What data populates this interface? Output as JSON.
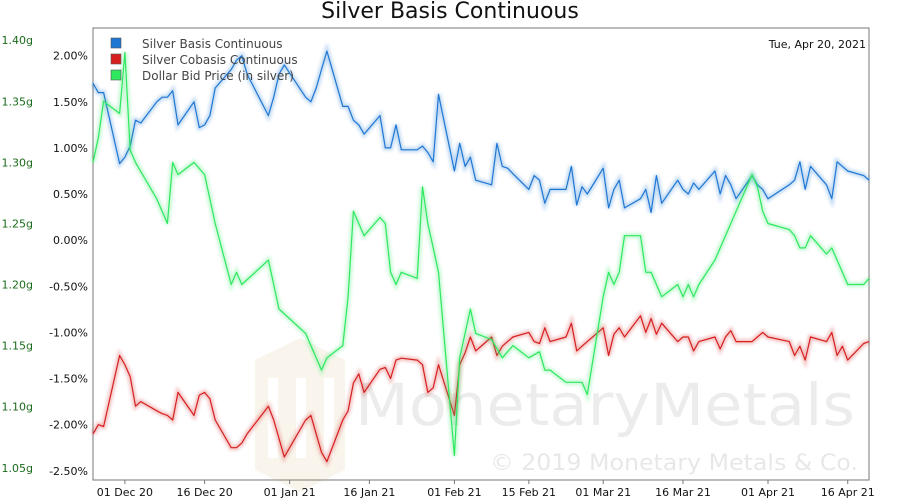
{
  "chart_data": {
    "type": "line",
    "title": "Silver Basis Continuous",
    "date_label": "Tue, Apr 20, 2021",
    "watermark": {
      "brand": "MonetaryMetals",
      "copyright": "© 2019 Monetary Metals & Co."
    },
    "x_ticks": [
      "01 Dec 20",
      "16 Dec 20",
      "01 Jan 21",
      "16 Jan 21",
      "01 Feb 21",
      "15 Feb 21",
      "01 Mar 21",
      "16 Mar 21",
      "01 Apr 21",
      "16 Apr 21"
    ],
    "x_tick_dates": [
      "2020-12-01",
      "2020-12-16",
      "2021-01-01",
      "2021-01-16",
      "2021-02-01",
      "2021-02-15",
      "2021-03-01",
      "2021-03-16",
      "2021-04-01",
      "2021-04-16"
    ],
    "xlim": [
      "2020-11-25",
      "2021-04-20"
    ],
    "y_left": {
      "ylim": [
        1.04,
        1.41
      ],
      "ticks": [
        "1.05g",
        "1.10g",
        "1.15g",
        "1.20g",
        "1.25g",
        "1.30g",
        "1.35g",
        "1.40g"
      ],
      "tick_values": [
        1.05,
        1.1,
        1.15,
        1.2,
        1.25,
        1.3,
        1.35,
        1.4
      ]
    },
    "y_right": {
      "ylim": [
        -2.6,
        2.3
      ],
      "ticks": [
        "-2.50%",
        "-2.00%",
        "-1.50%",
        "-1.00%",
        "-0.50%",
        "0.00%",
        "0.50%",
        "1.00%",
        "1.50%",
        "2.00%"
      ],
      "tick_values": [
        -2.5,
        -2.0,
        -1.5,
        -1.0,
        -0.5,
        0.0,
        0.5,
        1.0,
        1.5,
        2.0
      ]
    },
    "legend_position": "top-left",
    "series": [
      {
        "name": "Silver Basis Continuous",
        "color": "#1f77d4",
        "axis": "right",
        "dates": [
          "2020-11-25",
          "2020-11-26",
          "2020-11-27",
          "2020-11-30",
          "2020-12-01",
          "2020-12-02",
          "2020-12-03",
          "2020-12-04",
          "2020-12-07",
          "2020-12-08",
          "2020-12-09",
          "2020-12-10",
          "2020-12-11",
          "2020-12-14",
          "2020-12-15",
          "2020-12-16",
          "2020-12-17",
          "2020-12-18",
          "2020-12-21",
          "2020-12-22",
          "2020-12-23",
          "2020-12-24",
          "2020-12-28",
          "2020-12-29",
          "2020-12-30",
          "2020-12-31",
          "2021-01-04",
          "2021-01-05",
          "2021-01-06",
          "2021-01-07",
          "2021-01-08",
          "2021-01-11",
          "2021-01-12",
          "2021-01-13",
          "2021-01-14",
          "2021-01-15",
          "2021-01-18",
          "2021-01-19",
          "2021-01-20",
          "2021-01-21",
          "2021-01-22",
          "2021-01-25",
          "2021-01-26",
          "2021-01-27",
          "2021-01-28",
          "2021-01-29",
          "2021-02-01",
          "2021-02-02",
          "2021-02-03",
          "2021-02-04",
          "2021-02-05",
          "2021-02-08",
          "2021-02-09",
          "2021-02-10",
          "2021-02-11",
          "2021-02-12",
          "2021-02-15",
          "2021-02-16",
          "2021-02-17",
          "2021-02-18",
          "2021-02-19",
          "2021-02-22",
          "2021-02-23",
          "2021-02-24",
          "2021-02-25",
          "2021-02-26",
          "2021-03-01",
          "2021-03-02",
          "2021-03-03",
          "2021-03-04",
          "2021-03-05",
          "2021-03-08",
          "2021-03-09",
          "2021-03-10",
          "2021-03-11",
          "2021-03-12",
          "2021-03-15",
          "2021-03-16",
          "2021-03-17",
          "2021-03-18",
          "2021-03-19",
          "2021-03-22",
          "2021-03-23",
          "2021-03-24",
          "2021-03-25",
          "2021-03-26",
          "2021-03-29",
          "2021-03-30",
          "2021-03-31",
          "2021-04-01",
          "2021-04-05",
          "2021-04-06",
          "2021-04-07",
          "2021-04-08",
          "2021-04-09",
          "2021-04-12",
          "2021-04-13",
          "2021-04-14",
          "2021-04-15",
          "2021-04-16",
          "2021-04-19",
          "2021-04-20"
        ],
        "values": [
          1.7,
          1.6,
          1.6,
          0.83,
          0.9,
          1.02,
          1.3,
          1.27,
          1.5,
          1.55,
          1.55,
          1.62,
          1.25,
          1.5,
          1.22,
          1.25,
          1.35,
          1.65,
          1.85,
          1.95,
          2.0,
          1.8,
          1.35,
          1.55,
          1.8,
          1.9,
          1.55,
          1.5,
          1.65,
          1.85,
          2.05,
          1.45,
          1.45,
          1.3,
          1.25,
          1.15,
          1.35,
          1.0,
          1.0,
          1.25,
          0.98,
          0.98,
          1.02,
          0.95,
          0.85,
          1.58,
          0.75,
          1.05,
          0.8,
          0.9,
          0.65,
          0.6,
          1.05,
          0.8,
          0.78,
          0.72,
          0.55,
          0.7,
          0.65,
          0.4,
          0.55,
          0.55,
          0.8,
          0.38,
          0.58,
          0.5,
          0.78,
          0.35,
          0.55,
          0.65,
          0.35,
          0.45,
          0.55,
          0.3,
          0.7,
          0.4,
          0.65,
          0.55,
          0.5,
          0.62,
          0.55,
          0.75,
          0.5,
          0.7,
          0.6,
          0.45,
          0.7,
          0.6,
          0.55,
          0.45,
          0.6,
          0.65,
          0.85,
          0.55,
          0.8,
          0.6,
          0.45,
          0.85,
          0.8,
          0.75,
          0.7,
          0.65
        ]
      },
      {
        "name": "Silver Cobasis Continuous",
        "color": "#d62020",
        "axis": "right",
        "dates": [
          "2020-11-25",
          "2020-11-26",
          "2020-11-27",
          "2020-11-30",
          "2020-12-01",
          "2020-12-02",
          "2020-12-03",
          "2020-12-04",
          "2020-12-07",
          "2020-12-08",
          "2020-12-09",
          "2020-12-10",
          "2020-12-11",
          "2020-12-14",
          "2020-12-15",
          "2020-12-16",
          "2020-12-17",
          "2020-12-18",
          "2020-12-21",
          "2020-12-22",
          "2020-12-23",
          "2020-12-24",
          "2020-12-28",
          "2020-12-29",
          "2020-12-30",
          "2020-12-31",
          "2021-01-04",
          "2021-01-05",
          "2021-01-06",
          "2021-01-07",
          "2021-01-08",
          "2021-01-11",
          "2021-01-12",
          "2021-01-13",
          "2021-01-14",
          "2021-01-15",
          "2021-01-18",
          "2021-01-19",
          "2021-01-20",
          "2021-01-21",
          "2021-01-22",
          "2021-01-25",
          "2021-01-26",
          "2021-01-27",
          "2021-01-28",
          "2021-01-29",
          "2021-02-01",
          "2021-02-02",
          "2021-02-03",
          "2021-02-04",
          "2021-02-05",
          "2021-02-08",
          "2021-02-09",
          "2021-02-10",
          "2021-02-11",
          "2021-02-12",
          "2021-02-15",
          "2021-02-16",
          "2021-02-17",
          "2021-02-18",
          "2021-02-19",
          "2021-02-22",
          "2021-02-23",
          "2021-02-24",
          "2021-02-25",
          "2021-02-26",
          "2021-03-01",
          "2021-03-02",
          "2021-03-03",
          "2021-03-04",
          "2021-03-05",
          "2021-03-08",
          "2021-03-09",
          "2021-03-10",
          "2021-03-11",
          "2021-03-12",
          "2021-03-15",
          "2021-03-16",
          "2021-03-17",
          "2021-03-18",
          "2021-03-19",
          "2021-03-22",
          "2021-03-23",
          "2021-03-24",
          "2021-03-25",
          "2021-03-26",
          "2021-03-29",
          "2021-03-30",
          "2021-03-31",
          "2021-04-01",
          "2021-04-05",
          "2021-04-06",
          "2021-04-07",
          "2021-04-08",
          "2021-04-09",
          "2021-04-12",
          "2021-04-13",
          "2021-04-14",
          "2021-04-15",
          "2021-04-16",
          "2021-04-19",
          "2021-04-20"
        ],
        "values": [
          -2.1,
          -2.0,
          -2.02,
          -1.25,
          -1.35,
          -1.48,
          -1.8,
          -1.75,
          -1.85,
          -1.88,
          -1.9,
          -1.95,
          -1.65,
          -1.9,
          -1.68,
          -1.65,
          -1.72,
          -1.95,
          -2.25,
          -2.25,
          -2.2,
          -2.1,
          -1.8,
          -1.95,
          -2.15,
          -2.35,
          -1.95,
          -1.9,
          -2.1,
          -2.3,
          -2.4,
          -1.95,
          -1.85,
          -1.55,
          -1.45,
          -1.65,
          -1.4,
          -1.38,
          -1.5,
          -1.3,
          -1.28,
          -1.3,
          -1.35,
          -1.65,
          -1.6,
          -1.35,
          -1.9,
          -1.35,
          -1.22,
          -1.05,
          -1.2,
          -1.05,
          -1.25,
          -1.15,
          -1.1,
          -1.05,
          -1.0,
          -1.1,
          -1.12,
          -0.95,
          -1.1,
          -1.05,
          -0.9,
          -1.2,
          -1.15,
          -1.1,
          -0.95,
          -1.25,
          -1.02,
          -0.95,
          -1.05,
          -0.82,
          -1.0,
          -0.85,
          -1.02,
          -0.9,
          -1.1,
          -1.05,
          -1.05,
          -1.2,
          -1.1,
          -1.05,
          -1.18,
          -1.05,
          -0.98,
          -1.1,
          -1.1,
          -1.05,
          -1.0,
          -1.05,
          -1.1,
          -1.25,
          -1.15,
          -1.3,
          -1.05,
          -1.1,
          -1.0,
          -1.25,
          -1.15,
          -1.3,
          -1.12,
          -1.1
        ]
      },
      {
        "name": "Dollar Bid Price (in silver)",
        "color": "#2ee860",
        "axis": "left",
        "dates": [
          "2020-11-25",
          "2020-11-26",
          "2020-11-27",
          "2020-11-30",
          "2020-12-01",
          "2020-12-02",
          "2020-12-03",
          "2020-12-07",
          "2020-12-08",
          "2020-12-09",
          "2020-12-10",
          "2020-12-11",
          "2020-12-14",
          "2020-12-16",
          "2020-12-18",
          "2020-12-21",
          "2020-12-22",
          "2020-12-23",
          "2020-12-28",
          "2020-12-30",
          "2021-01-04",
          "2021-01-05",
          "2021-01-06",
          "2021-01-07",
          "2021-01-08",
          "2021-01-11",
          "2021-01-12",
          "2021-01-13",
          "2021-01-15",
          "2021-01-18",
          "2021-01-19",
          "2021-01-20",
          "2021-01-21",
          "2021-01-22",
          "2021-01-25",
          "2021-01-26",
          "2021-01-27",
          "2021-01-28",
          "2021-01-29",
          "2021-02-01",
          "2021-02-02",
          "2021-02-03",
          "2021-02-04",
          "2021-02-05",
          "2021-02-08",
          "2021-02-10",
          "2021-02-12",
          "2021-02-15",
          "2021-02-17",
          "2021-02-18",
          "2021-02-19",
          "2021-02-22",
          "2021-02-23",
          "2021-02-24",
          "2021-02-25",
          "2021-02-26",
          "2021-03-01",
          "2021-03-02",
          "2021-03-03",
          "2021-03-04",
          "2021-03-05",
          "2021-03-08",
          "2021-03-09",
          "2021-03-10",
          "2021-03-11",
          "2021-03-12",
          "2021-03-15",
          "2021-03-16",
          "2021-03-17",
          "2021-03-18",
          "2021-03-19",
          "2021-03-22",
          "2021-03-23",
          "2021-03-24",
          "2021-03-25",
          "2021-03-26",
          "2021-03-29",
          "2021-03-30",
          "2021-03-31",
          "2021-04-01",
          "2021-04-05",
          "2021-04-06",
          "2021-04-07",
          "2021-04-08",
          "2021-04-09",
          "2021-04-12",
          "2021-04-13",
          "2021-04-14",
          "2021-04-15",
          "2021-04-16",
          "2021-04-19",
          "2021-04-20"
        ],
        "values": [
          1.3,
          1.32,
          1.35,
          1.34,
          1.39,
          1.31,
          1.3,
          1.27,
          1.26,
          1.25,
          1.3,
          1.29,
          1.3,
          1.29,
          1.25,
          1.2,
          1.21,
          1.2,
          1.22,
          1.18,
          1.16,
          1.15,
          1.14,
          1.13,
          1.14,
          1.15,
          1.19,
          1.26,
          1.24,
          1.255,
          1.25,
          1.21,
          1.2,
          1.21,
          1.205,
          1.28,
          1.25,
          1.23,
          1.21,
          1.06,
          1.14,
          1.16,
          1.18,
          1.16,
          1.155,
          1.14,
          1.15,
          1.14,
          1.145,
          1.13,
          1.13,
          1.12,
          1.12,
          1.12,
          1.12,
          1.11,
          1.19,
          1.21,
          1.2,
          1.21,
          1.24,
          1.24,
          1.21,
          1.21,
          1.2,
          1.19,
          1.2,
          1.19,
          1.2,
          1.19,
          1.2,
          1.22,
          1.23,
          1.24,
          1.25,
          1.26,
          1.29,
          1.28,
          1.26,
          1.25,
          1.245,
          1.24,
          1.23,
          1.23,
          1.24,
          1.225,
          1.23,
          1.22,
          1.21,
          1.2,
          1.2,
          1.205
        ]
      }
    ]
  }
}
